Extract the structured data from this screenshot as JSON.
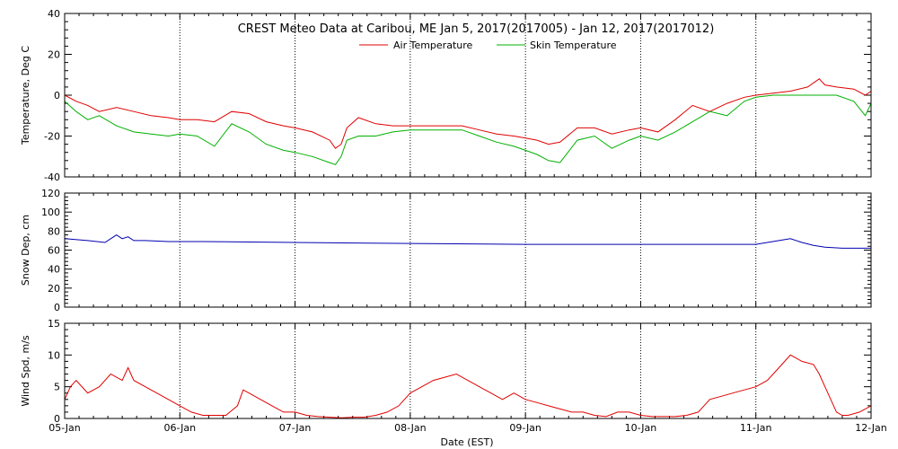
{
  "chart_data": {
    "title": "CREST Meteo Data at Caribou, ME   Jan  5, 2017(2017005) - Jan 12, 2017(2017012)",
    "xlabel": "Date (EST)",
    "x_ticks": [
      "05-Jan",
      "06-Jan",
      "07-Jan",
      "08-Jan",
      "09-Jan",
      "10-Jan",
      "11-Jan",
      "12-Jan"
    ],
    "x_range_days": [
      0,
      7
    ],
    "grid": true,
    "panels": [
      {
        "type": "line",
        "ylabel": "Temperature, Deg C",
        "ylim": [
          -40,
          40
        ],
        "yticks": [
          -40,
          -20,
          0,
          20,
          40
        ],
        "legend": "top-center",
        "series": [
          {
            "name": "Air Temperature",
            "color": "#e00000",
            "x": [
              0,
              0.1,
              0.2,
              0.3,
              0.45,
              0.6,
              0.75,
              0.9,
              1.0,
              1.15,
              1.3,
              1.45,
              1.6,
              1.75,
              1.9,
              2.0,
              2.15,
              2.3,
              2.35,
              2.4,
              2.45,
              2.55,
              2.7,
              2.85,
              3.0,
              3.15,
              3.3,
              3.45,
              3.6,
              3.75,
              3.9,
              4.0,
              4.1,
              4.2,
              4.3,
              4.45,
              4.6,
              4.75,
              4.9,
              5.0,
              5.15,
              5.3,
              5.45,
              5.6,
              5.75,
              5.9,
              6.0,
              6.15,
              6.3,
              6.45,
              6.55,
              6.6,
              6.7,
              6.85,
              6.95,
              7.0
            ],
            "y": [
              0,
              -3,
              -5,
              -8,
              -6,
              -8,
              -10,
              -11,
              -12,
              -12,
              -13,
              -8,
              -9,
              -13,
              -15,
              -16,
              -18,
              -22,
              -26,
              -24,
              -16,
              -11,
              -14,
              -15,
              -15,
              -15,
              -15,
              -15,
              -17,
              -19,
              -20,
              -21,
              -22,
              -24,
              -23,
              -16,
              -16,
              -19,
              -17,
              -16,
              -18,
              -12,
              -5,
              -8,
              -4,
              -1,
              0,
              1,
              2,
              4,
              8,
              5,
              4,
              3,
              0,
              2
            ]
          },
          {
            "name": "Skin Temperature",
            "color": "#00b000",
            "x": [
              0,
              0.1,
              0.2,
              0.3,
              0.45,
              0.6,
              0.75,
              0.9,
              1.0,
              1.15,
              1.3,
              1.45,
              1.6,
              1.75,
              1.9,
              2.0,
              2.15,
              2.3,
              2.35,
              2.4,
              2.45,
              2.55,
              2.7,
              2.85,
              3.0,
              3.15,
              3.3,
              3.45,
              3.6,
              3.75,
              3.9,
              4.0,
              4.1,
              4.2,
              4.3,
              4.45,
              4.6,
              4.75,
              4.9,
              5.0,
              5.15,
              5.3,
              5.45,
              5.6,
              5.75,
              5.9,
              6.0,
              6.15,
              6.3,
              6.45,
              6.55,
              6.6,
              6.7,
              6.85,
              6.95,
              7.0
            ],
            "y": [
              -3,
              -8,
              -12,
              -10,
              -15,
              -18,
              -19,
              -20,
              -19,
              -20,
              -25,
              -14,
              -18,
              -24,
              -27,
              -28,
              -30,
              -33,
              -34,
              -30,
              -22,
              -20,
              -20,
              -18,
              -17,
              -17,
              -17,
              -17,
              -20,
              -23,
              -25,
              -27,
              -29,
              -32,
              -33,
              -22,
              -20,
              -26,
              -22,
              -20,
              -22,
              -18,
              -13,
              -8,
              -10,
              -3,
              -1,
              0,
              0,
              0,
              0,
              0,
              0,
              -3,
              -10,
              -4
            ]
          }
        ]
      },
      {
        "type": "line",
        "ylabel": "Snow Dep, cm",
        "ylim": [
          0,
          120
        ],
        "yticks": [
          0,
          20,
          40,
          60,
          80,
          100,
          120
        ],
        "series": [
          {
            "name": "",
            "color": "#0000b0",
            "x": [
              0,
              0.2,
              0.35,
              0.45,
              0.5,
              0.55,
              0.6,
              0.7,
              0.9,
              1.2,
              2.0,
              3.0,
              4.0,
              5.0,
              6.0,
              6.2,
              6.3,
              6.4,
              6.5,
              6.6,
              6.75,
              7.0
            ],
            "y": [
              72,
              70,
              68,
              76,
              72,
              74,
              70,
              70,
              69,
              69,
              68,
              67,
              66,
              66,
              66,
              70,
              72,
              68,
              65,
              63,
              62,
              62
            ]
          }
        ]
      },
      {
        "type": "line",
        "ylabel": "Wind Spd, m/s",
        "ylim": [
          0,
          15
        ],
        "yticks": [
          0,
          5,
          10,
          15
        ],
        "series": [
          {
            "name": "",
            "color": "#e00000",
            "x": [
              0,
              0.05,
              0.1,
              0.2,
              0.3,
              0.4,
              0.5,
              0.55,
              0.6,
              0.7,
              0.8,
              0.9,
              1.0,
              1.1,
              1.2,
              1.3,
              1.4,
              1.5,
              1.55,
              1.6,
              1.7,
              1.8,
              1.9,
              2.0,
              2.1,
              2.2,
              2.3,
              2.4,
              2.5,
              2.6,
              2.7,
              2.8,
              2.9,
              3.0,
              3.1,
              3.2,
              3.3,
              3.4,
              3.5,
              3.6,
              3.7,
              3.8,
              3.9,
              4.0,
              4.1,
              4.2,
              4.3,
              4.4,
              4.5,
              4.6,
              4.7,
              4.8,
              4.9,
              5.0,
              5.1,
              5.2,
              5.3,
              5.4,
              5.5,
              5.6,
              5.7,
              5.8,
              5.9,
              6.0,
              6.1,
              6.2,
              6.3,
              6.4,
              6.5,
              6.55,
              6.6,
              6.7,
              6.75,
              6.8,
              6.9,
              7.0
            ],
            "y": [
              3,
              5,
              6,
              4,
              5,
              7,
              6,
              8,
              6,
              5,
              4,
              3,
              2,
              1,
              0.5,
              0.5,
              0.5,
              2,
              4.5,
              4,
              3,
              2,
              1,
              1,
              0.5,
              0.3,
              0.2,
              0.1,
              0.2,
              0.2,
              0.5,
              1,
              2,
              4,
              5,
              6,
              6.5,
              7,
              6,
              5,
              4,
              3,
              4,
              3,
              2.5,
              2,
              1.5,
              1,
              1,
              0.5,
              0.3,
              1,
              1,
              0.5,
              0.3,
              0.3,
              0.3,
              0.5,
              1,
              3,
              3.5,
              4,
              4.5,
              5,
              6,
              8,
              10,
              9,
              8.5,
              7,
              5,
              1,
              0.5,
              0.5,
              1,
              2
            ]
          }
        ]
      }
    ]
  }
}
